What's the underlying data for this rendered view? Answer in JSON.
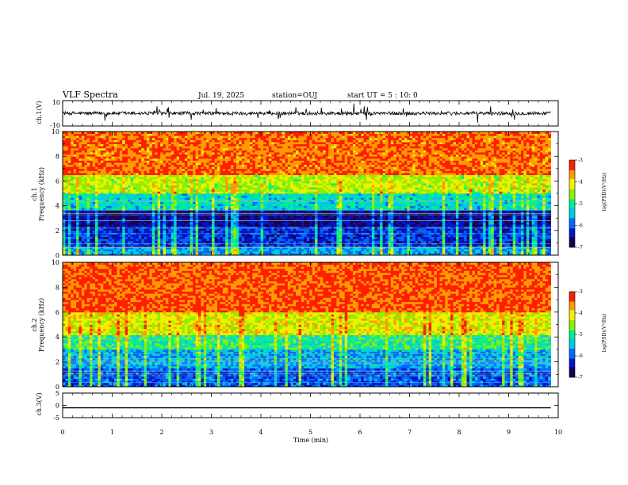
{
  "header": {
    "title": "VLF Spectra",
    "date": "Jul. 19, 2025",
    "station": "station=OUJ",
    "start": "start UT =  5 : 10: 0"
  },
  "colors": {
    "spectrum": [
      "#1a004f",
      "#0015c8",
      "#0066ff",
      "#00c8e6",
      "#00f08c",
      "#8cf000",
      "#f0f000",
      "#ff9b00",
      "#ff1e00"
    ]
  },
  "chart_data": [
    {
      "type": "line",
      "name": "ch1-waveform",
      "ylabel": "ch.1(V)",
      "ylim": [
        -10,
        10
      ],
      "yticks": [
        {
          "value": 10,
          "label": "10"
        },
        {
          "value": -10,
          "label": "-10"
        }
      ],
      "description_values": {
        "baseline": 0,
        "typical_amplitude": 2,
        "spike_max": 8
      }
    },
    {
      "type": "heatmap",
      "name": "ch1-spectrogram",
      "ylabel_line1": "ch.1",
      "ylabel_line2": "Frequency (kHz)",
      "ylim": [
        0,
        10
      ],
      "yticks": [
        0,
        2,
        4,
        6,
        8,
        10
      ],
      "colorbar": {
        "label": "log(PSD)(V²/Hz)",
        "range": [
          -7,
          -3
        ],
        "ticks": [
          -3,
          -4,
          -5,
          -6,
          -7
        ]
      },
      "bands": [
        {
          "from": 0,
          "to": 0.6,
          "level": -5.6
        },
        {
          "from": 0.6,
          "to": 2.4,
          "level": -6.2
        },
        {
          "from": 2.4,
          "to": 3.6,
          "level": -6.6
        },
        {
          "from": 3.6,
          "to": 5,
          "level": -5.3
        },
        {
          "from": 5,
          "to": 6.5,
          "level": -4.4
        },
        {
          "from": 6.5,
          "to": 10,
          "level": -3.5
        }
      ]
    },
    {
      "type": "heatmap",
      "name": "ch2-spectrogram",
      "ylabel_line1": "ch.2",
      "ylabel_line2": "Frequency (kHz)",
      "ylim": [
        0,
        10
      ],
      "yticks": [
        0,
        2,
        4,
        6,
        8,
        10
      ],
      "colorbar": {
        "label": "log(PSD)(V²/Hz)",
        "range": [
          -7,
          -3
        ],
        "ticks": [
          -3,
          -4,
          -5,
          -6,
          -7
        ]
      },
      "bands": [
        {
          "from": 0,
          "to": 1.5,
          "level": -6.0
        },
        {
          "from": 1.5,
          "to": 3,
          "level": -5.6
        },
        {
          "from": 3,
          "to": 4.2,
          "level": -5.0
        },
        {
          "from": 4.2,
          "to": 6,
          "level": -4.2
        },
        {
          "from": 6,
          "to": 10,
          "level": -3.4
        }
      ]
    },
    {
      "type": "line",
      "name": "ch3-waveform",
      "ylabel": "ch.3(V)",
      "xlabel": "Time (min)",
      "ylim": [
        -5,
        5
      ],
      "yticks": [
        {
          "value": 5,
          "label": "5"
        },
        {
          "value": 0,
          "label": "0"
        },
        {
          "value": -5,
          "label": "-5"
        }
      ],
      "x": [
        0,
        9.85
      ],
      "y": [
        -1,
        -1
      ]
    }
  ],
  "time_axis": {
    "xlim": [
      0,
      10
    ],
    "data_end": 9.85,
    "ticks": [
      0,
      1,
      2,
      3,
      4,
      5,
      6,
      7,
      8,
      9,
      10
    ],
    "label": "Time (min)"
  }
}
